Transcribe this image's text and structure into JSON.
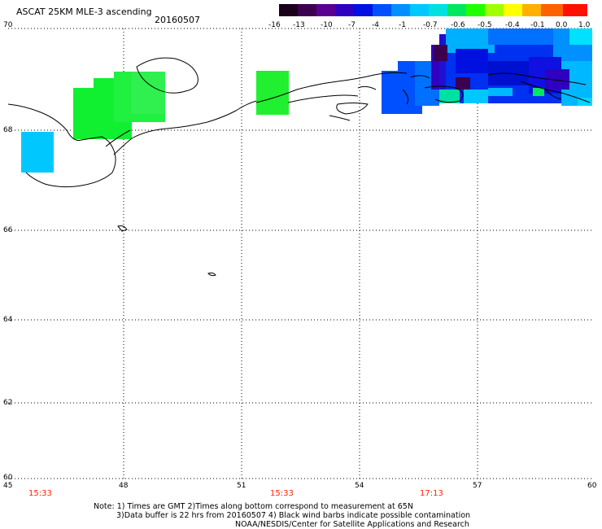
{
  "header": {
    "title": "ASCAT 25KM MLE-3 ascending",
    "date": "20160507"
  },
  "colorbar": {
    "ticks": [
      "-16",
      "-13",
      "-10",
      "-7",
      "-4",
      "-1",
      "-0.7",
      "-0.6",
      "-0.5",
      "-0.4",
      "-0.1",
      "0.0",
      "1.0"
    ],
    "colors": [
      "#1a001a",
      "#3c0050",
      "#5a0090",
      "#3000c0",
      "#0010e0",
      "#0050ff",
      "#0090ff",
      "#00c8ff",
      "#00e0e0",
      "#00e860",
      "#20ff00",
      "#a0ff00",
      "#ffff00",
      "#ffb000",
      "#ff6000",
      "#ff1000"
    ]
  },
  "axes": {
    "lat_labels": [
      "70",
      "68",
      "66",
      "64",
      "62",
      "60"
    ],
    "lon_labels": [
      "45",
      "48",
      "51",
      "54",
      "57",
      "60"
    ]
  },
  "times": [
    "15:33",
    "15:33",
    "17:13"
  ],
  "time_color": "#ff2000",
  "notes": {
    "line1": "Note: 1) Times are GMT 2)Times along bottom correspond to measurement at 65N",
    "line2": "3)Data buffer is 22 hrs from 20160507 4) Black wind barbs indicate possible contamination",
    "line3": "NOAA/NESDIS/Center for Satellite Applications and Research"
  }
}
